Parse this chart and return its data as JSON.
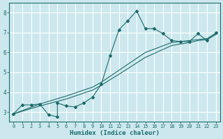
{
  "xlabel": "Humidex (Indice chaleur)",
  "ylabel": "",
  "xlim": [
    -0.5,
    23.5
  ],
  "ylim": [
    2.5,
    8.5
  ],
  "xticks": [
    0,
    1,
    2,
    3,
    4,
    5,
    6,
    7,
    8,
    9,
    10,
    11,
    12,
    13,
    14,
    15,
    16,
    17,
    18,
    19,
    20,
    21,
    22,
    23
  ],
  "yticks": [
    3,
    4,
    5,
    6,
    7,
    8
  ],
  "bg_color": "#cce8ee",
  "line_color": "#1a6b6b",
  "grid_color": "#ffffff",
  "line1_jagged": [
    [
      0,
      2.9
    ],
    [
      1,
      3.35
    ],
    [
      2,
      3.35
    ],
    [
      3,
      3.4
    ],
    [
      4,
      2.85
    ],
    [
      5,
      2.75
    ],
    [
      5,
      3.45
    ],
    [
      6,
      3.3
    ],
    [
      7,
      3.25
    ],
    [
      8,
      3.45
    ],
    [
      9,
      3.75
    ],
    [
      10,
      4.4
    ],
    [
      11,
      5.85
    ],
    [
      12,
      7.15
    ],
    [
      13,
      7.6
    ],
    [
      14,
      8.1
    ],
    [
      15,
      7.2
    ],
    [
      16,
      7.2
    ],
    [
      17,
      6.95
    ],
    [
      18,
      6.6
    ],
    [
      19,
      6.55
    ],
    [
      20,
      6.55
    ],
    [
      21,
      6.95
    ],
    [
      22,
      6.6
    ],
    [
      23,
      7.0
    ]
  ],
  "line2_smooth": [
    [
      0,
      2.9
    ],
    [
      3,
      3.4
    ],
    [
      6,
      3.8
    ],
    [
      9,
      4.25
    ],
    [
      10,
      4.5
    ],
    [
      12,
      5.1
    ],
    [
      15,
      6.0
    ],
    [
      18,
      6.5
    ],
    [
      20,
      6.6
    ],
    [
      21,
      6.65
    ],
    [
      22,
      6.7
    ],
    [
      23,
      6.95
    ]
  ],
  "line3_smooth": [
    [
      0,
      2.9
    ],
    [
      3,
      3.3
    ],
    [
      6,
      3.65
    ],
    [
      9,
      4.1
    ],
    [
      10,
      4.35
    ],
    [
      12,
      4.9
    ],
    [
      15,
      5.75
    ],
    [
      18,
      6.35
    ],
    [
      20,
      6.5
    ],
    [
      21,
      6.6
    ],
    [
      22,
      6.65
    ],
    [
      23,
      6.9
    ]
  ]
}
